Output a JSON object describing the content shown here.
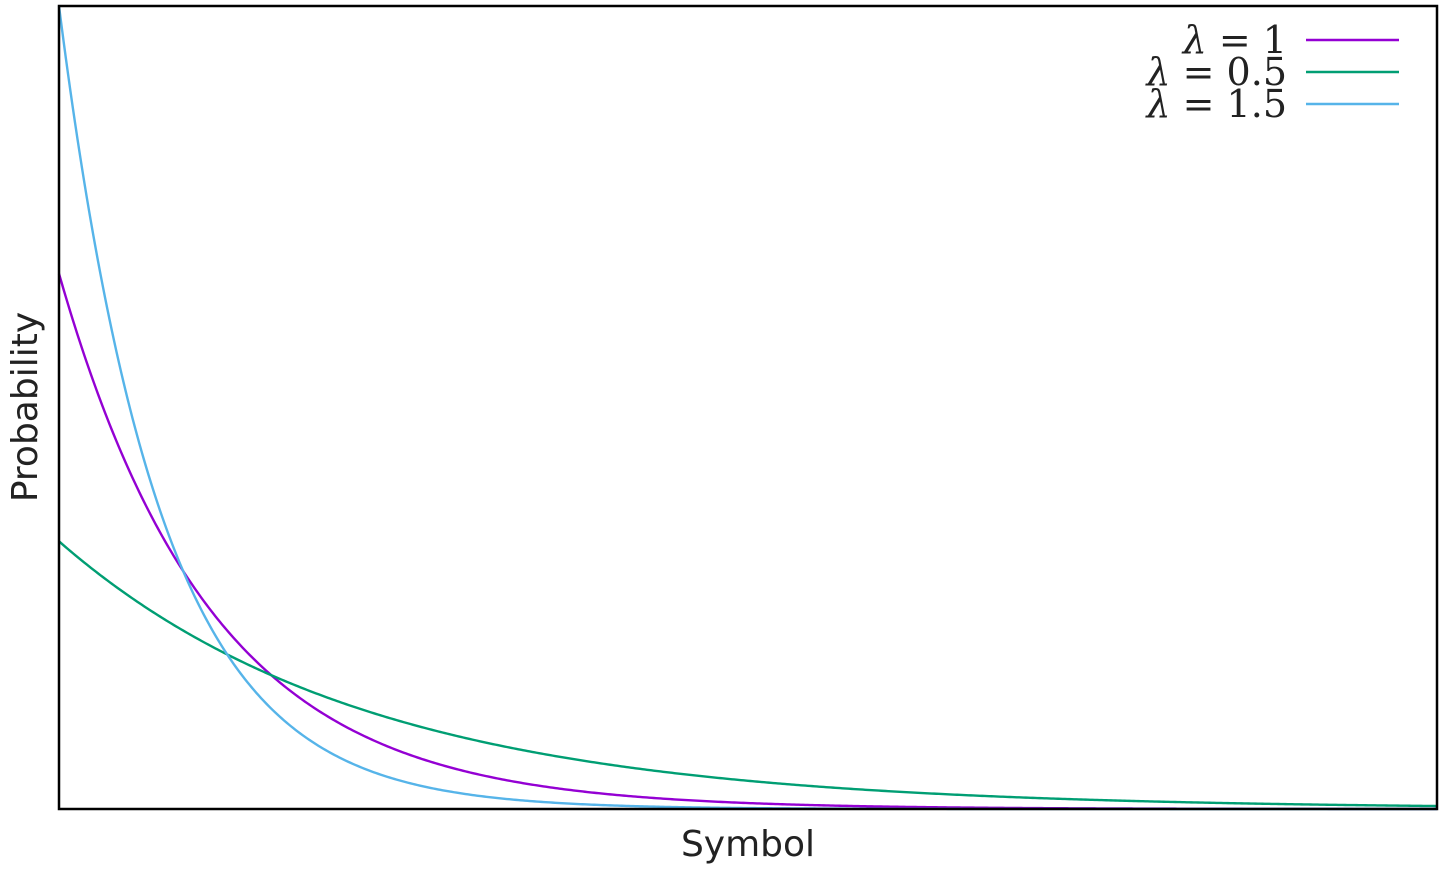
{
  "chart_data": {
    "type": "line",
    "title": "",
    "xlabel": "Symbol",
    "ylabel": "Probability",
    "xlim": [
      0,
      9
    ],
    "ylim": [
      0,
      1.5
    ],
    "x_ticks_shown": false,
    "y_ticks_shown": false,
    "grid": false,
    "legend": {
      "position": "top-right"
    },
    "series": [
      {
        "name": "λ = 1",
        "lambda_symbol": "λ",
        "lambda_value": "1",
        "rate": 1,
        "color": "#9400d3",
        "x": [
          0,
          0.5,
          1,
          1.5,
          2,
          2.5,
          3,
          3.5,
          4,
          4.5,
          5,
          5.5,
          6,
          6.5,
          7,
          7.5,
          8,
          8.5,
          9
        ],
        "y": [
          1.0,
          0.607,
          0.368,
          0.223,
          0.135,
          0.082,
          0.0498,
          0.0302,
          0.0183,
          0.0111,
          0.0067,
          0.0041,
          0.0025,
          0.0015,
          0.0009,
          0.0006,
          0.0003,
          0.0002,
          0.0001
        ]
      },
      {
        "name": "λ = 0.5",
        "lambda_symbol": "λ",
        "lambda_value": "0.5",
        "rate": 0.5,
        "color": "#009e73",
        "x": [
          0,
          0.5,
          1,
          1.5,
          2,
          2.5,
          3,
          3.5,
          4,
          4.5,
          5,
          5.5,
          6,
          6.5,
          7,
          7.5,
          8,
          8.5,
          9
        ],
        "y": [
          0.5,
          0.389,
          0.303,
          0.236,
          0.184,
          0.143,
          0.112,
          0.0869,
          0.0677,
          0.0527,
          0.041,
          0.032,
          0.0249,
          0.0194,
          0.0151,
          0.0118,
          0.0092,
          0.0071,
          0.0056
        ]
      },
      {
        "name": "λ = 1.5",
        "lambda_symbol": "λ",
        "lambda_value": "1.5",
        "rate": 1.5,
        "color": "#56b4e9",
        "x": [
          0,
          0.25,
          0.5,
          0.75,
          1,
          1.25,
          1.5,
          1.75,
          2,
          2.5,
          3,
          3.5,
          4,
          4.5,
          5,
          6,
          7,
          8,
          9
        ],
        "y": [
          1.5,
          1.031,
          0.708,
          0.487,
          0.335,
          0.23,
          0.158,
          0.109,
          0.0747,
          0.0353,
          0.0167,
          0.0079,
          0.0037,
          0.0018,
          0.0008,
          0.0002,
          0.0,
          0.0,
          0.0
        ]
      }
    ]
  }
}
